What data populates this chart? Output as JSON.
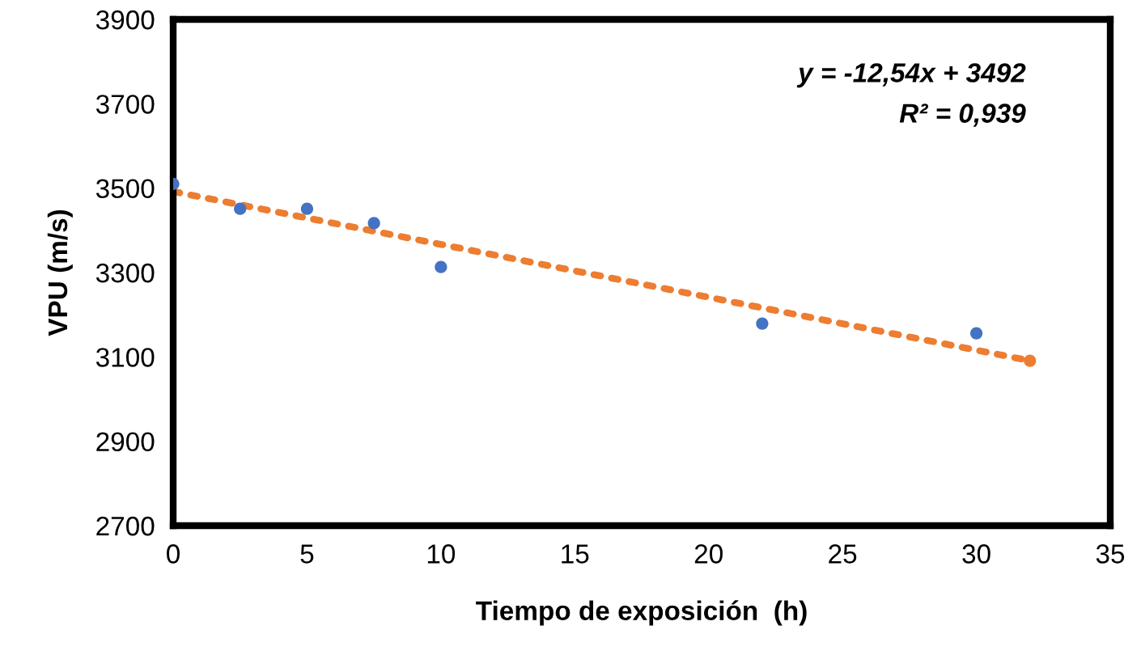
{
  "chart_data": {
    "type": "scatter",
    "xlabel": "Tiempo de exposición  (h)",
    "ylabel": "VPU (m/s)",
    "xlim": [
      0,
      35
    ],
    "xticks": [
      0,
      5,
      10,
      15,
      20,
      25,
      30,
      35
    ],
    "ylim": [
      2700,
      3900
    ],
    "yticks": [
      2700,
      2900,
      3100,
      3300,
      3500,
      3700,
      3900
    ],
    "grid": false,
    "legend": false,
    "marker": "circle",
    "series": [
      {
        "x": [
          0,
          2.5,
          5,
          7.5,
          10,
          22,
          30,
          32
        ],
        "values": [
          3510,
          3451,
          3451,
          3417,
          3313,
          3179,
          3156,
          3091
        ],
        "colors": [
          "#4472c4",
          "#4472c4",
          "#4472c4",
          "#4472c4",
          "#4472c4",
          "#4472c4",
          "#4472c4",
          "#ed7d31"
        ]
      },
      {
        "type": "line",
        "x": [
          0,
          32
        ],
        "values": [
          3492,
          3091
        ],
        "color": "#ed7d31",
        "line_style": "dotted",
        "marker": "none"
      }
    ],
    "annotations": [
      "y = -12,54x + 3492",
      "R² = 0,939"
    ]
  }
}
